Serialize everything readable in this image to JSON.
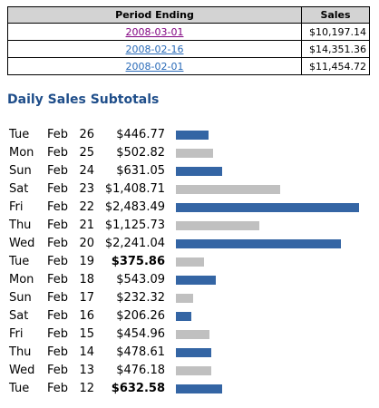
{
  "period_table": {
    "headers": {
      "period": "Period Ending",
      "sales": "Sales"
    },
    "rows": [
      {
        "period": "2008-03-01",
        "sales": "$10,197.14",
        "visited": true
      },
      {
        "period": "2008-02-16",
        "sales": "$14,351.36",
        "visited": false
      },
      {
        "period": "2008-02-01",
        "sales": "$11,454.72",
        "visited": false
      }
    ]
  },
  "daily": {
    "title": "Daily Sales Subtotals",
    "max_value": 2483.49,
    "colors": {
      "blue": "#3465a4",
      "gray": "#c0c0c0"
    },
    "rows": [
      {
        "dow": "Tue",
        "month": "Feb",
        "day": "26",
        "amount": "$446.77",
        "value": 446.77,
        "color": "blue",
        "bold": false
      },
      {
        "dow": "Mon",
        "month": "Feb",
        "day": "25",
        "amount": "$502.82",
        "value": 502.82,
        "color": "gray",
        "bold": false
      },
      {
        "dow": "Sun",
        "month": "Feb",
        "day": "24",
        "amount": "$631.05",
        "value": 631.05,
        "color": "blue",
        "bold": false
      },
      {
        "dow": "Sat",
        "month": "Feb",
        "day": "23",
        "amount": "$1,408.71",
        "value": 1408.71,
        "color": "gray",
        "bold": false
      },
      {
        "dow": "Fri",
        "month": "Feb",
        "day": "22",
        "amount": "$2,483.49",
        "value": 2483.49,
        "color": "blue",
        "bold": false
      },
      {
        "dow": "Thu",
        "month": "Feb",
        "day": "21",
        "amount": "$1,125.73",
        "value": 1125.73,
        "color": "gray",
        "bold": false
      },
      {
        "dow": "Wed",
        "month": "Feb",
        "day": "20",
        "amount": "$2,241.04",
        "value": 2241.04,
        "color": "blue",
        "bold": false
      },
      {
        "dow": "Tue",
        "month": "Feb",
        "day": "19",
        "amount": "$375.86",
        "value": 375.86,
        "color": "gray",
        "bold": true
      },
      {
        "dow": "Mon",
        "month": "Feb",
        "day": "18",
        "amount": "$543.09",
        "value": 543.09,
        "color": "blue",
        "bold": false
      },
      {
        "dow": "Sun",
        "month": "Feb",
        "day": "17",
        "amount": "$232.32",
        "value": 232.32,
        "color": "gray",
        "bold": false
      },
      {
        "dow": "Sat",
        "month": "Feb",
        "day": "16",
        "amount": "$206.26",
        "value": 206.26,
        "color": "blue",
        "bold": false
      },
      {
        "dow": "Fri",
        "month": "Feb",
        "day": "15",
        "amount": "$454.96",
        "value": 454.96,
        "color": "gray",
        "bold": false
      },
      {
        "dow": "Thu",
        "month": "Feb",
        "day": "14",
        "amount": "$478.61",
        "value": 478.61,
        "color": "blue",
        "bold": false
      },
      {
        "dow": "Wed",
        "month": "Feb",
        "day": "13",
        "amount": "$476.18",
        "value": 476.18,
        "color": "gray",
        "bold": false
      },
      {
        "dow": "Tue",
        "month": "Feb",
        "day": "12",
        "amount": "$632.58",
        "value": 632.58,
        "color": "blue",
        "bold": true
      }
    ]
  }
}
